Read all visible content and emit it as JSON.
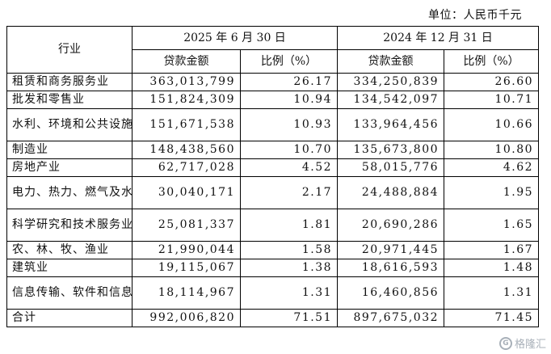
{
  "unit_label": "单位：人民币千元",
  "header": {
    "industry": "行业",
    "period1": "2025 年 6 月 30 日",
    "period2": "2024 年 12 月 31 日",
    "amount": "贷款金额",
    "ratio": "比例（%）"
  },
  "rows": [
    {
      "industry": "租赁和商务服务业",
      "amount1": "363,013,799",
      "ratio1": "26.17",
      "amount2": "334,250,839",
      "ratio2": "26.60"
    },
    {
      "industry": "批发和零售业",
      "amount1": "151,824,309",
      "ratio1": "10.94",
      "amount2": "134,542,097",
      "ratio2": "10.71"
    },
    {
      "industry": "水利、环境和公共设施管理业",
      "amount1": "151,671,538",
      "ratio1": "10.93",
      "amount2": "133,964,456",
      "ratio2": "10.66"
    },
    {
      "industry": "制造业",
      "amount1": "148,438,560",
      "ratio1": "10.70",
      "amount2": "135,673,800",
      "ratio2": "10.80"
    },
    {
      "industry": "房地产业",
      "amount1": "62,717,028",
      "ratio1": "4.52",
      "amount2": "58,015,776",
      "ratio2": "4.62"
    },
    {
      "industry": "电力、热力、燃气及水生产和供应业",
      "amount1": "30,040,171",
      "ratio1": "2.17",
      "amount2": "24,488,884",
      "ratio2": "1.95"
    },
    {
      "industry": "科学研究和技术服务业",
      "amount1": "25,081,337",
      "ratio1": "1.81",
      "amount2": "20,690,286",
      "ratio2": "1.65"
    },
    {
      "industry": "农、林、牧、渔业",
      "amount1": "21,990,044",
      "ratio1": "1.58",
      "amount2": "20,971,445",
      "ratio2": "1.67"
    },
    {
      "industry": "建筑业",
      "amount1": "19,115,067",
      "ratio1": "1.38",
      "amount2": "18,616,593",
      "ratio2": "1.48"
    },
    {
      "industry": "信息传输、软件和信息技术服务业",
      "amount1": "18,114,967",
      "ratio1": "1.31",
      "amount2": "16,460,856",
      "ratio2": "1.31"
    },
    {
      "industry": "合计",
      "amount1": "992,006,820",
      "ratio1": "71.51",
      "amount2": "897,675,032",
      "ratio2": "71.45"
    }
  ],
  "watermark": {
    "logo_icon": "gelonghui-logo",
    "logo_text": "G",
    "text": "格隆汇"
  }
}
